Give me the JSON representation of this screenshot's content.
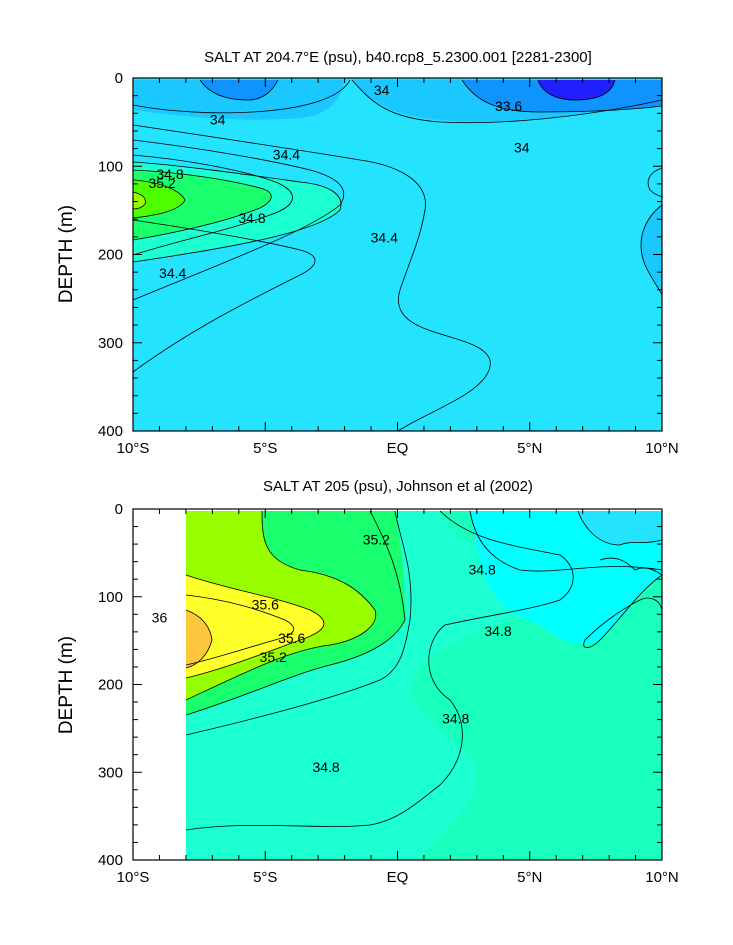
{
  "chart_data": [
    {
      "type": "heatmap",
      "title": "SALT AT 204.7°E (psu), b40.rcp8_5.2300.001 [2281-2300]",
      "xlabel": "",
      "ylabel": "DEPTH (m)",
      "xlim": [
        -10,
        10
      ],
      "ylim": [
        400,
        0
      ],
      "x_ticks": [
        -10,
        -5,
        0,
        5,
        10
      ],
      "x_tick_labels": [
        "10°S",
        "5°S",
        "EQ",
        "5°N",
        "10°N"
      ],
      "y_ticks": [
        0,
        100,
        200,
        300,
        400
      ],
      "y_tick_labels": [
        "0",
        "100",
        "200",
        "300",
        "400"
      ],
      "contour_levels": [
        33.6,
        34,
        34.4,
        34.8,
        35.2
      ],
      "contour_labels": [
        {
          "text": "34",
          "x": -6.8,
          "y": 48
        },
        {
          "text": "34",
          "x": -0.6,
          "y": 15
        },
        {
          "text": "33.6",
          "x": 4.2,
          "y": 33
        },
        {
          "text": "34",
          "x": 4.7,
          "y": 80
        },
        {
          "text": "34.4",
          "x": -4.2,
          "y": 88
        },
        {
          "text": "34.8",
          "x": -8.6,
          "y": 110
        },
        {
          "text": "35.2",
          "x": -8.9,
          "y": 120
        },
        {
          "text": "34.8",
          "x": -5.5,
          "y": 160
        },
        {
          "text": "34.4",
          "x": -0.5,
          "y": 182
        },
        {
          "text": "34.4",
          "x": -8.5,
          "y": 222
        }
      ],
      "grid": false
    },
    {
      "type": "heatmap",
      "title": "SALT AT 205 (psu), Johnson et al (2002)",
      "xlabel": "",
      "ylabel": "DEPTH (m)",
      "xlim": [
        -10,
        10
      ],
      "ylim": [
        400,
        0
      ],
      "x_ticks": [
        -10,
        -5,
        0,
        5,
        10
      ],
      "x_tick_labels": [
        "10°S",
        "5°S",
        "EQ",
        "5°N",
        "10°N"
      ],
      "y_ticks": [
        0,
        100,
        200,
        300,
        400
      ],
      "y_tick_labels": [
        "0",
        "100",
        "200",
        "300",
        "400"
      ],
      "data_extent_x": [
        -8,
        10
      ],
      "contour_levels": [
        34.8,
        35.2,
        35.6,
        36
      ],
      "contour_labels": [
        {
          "text": "35.2",
          "x": -0.8,
          "y": 36
        },
        {
          "text": "34.8",
          "x": 3.2,
          "y": 70
        },
        {
          "text": "35.6",
          "x": -5.0,
          "y": 110
        },
        {
          "text": "36",
          "x": -9.0,
          "y": 125
        },
        {
          "text": "34.8",
          "x": 3.8,
          "y": 140
        },
        {
          "text": "35.6",
          "x": -4.0,
          "y": 148
        },
        {
          "text": "35.2",
          "x": -4.7,
          "y": 170
        },
        {
          "text": "34.8",
          "x": 2.2,
          "y": 240
        },
        {
          "text": "34.8",
          "x": -2.7,
          "y": 295
        }
      ],
      "grid": false
    }
  ]
}
